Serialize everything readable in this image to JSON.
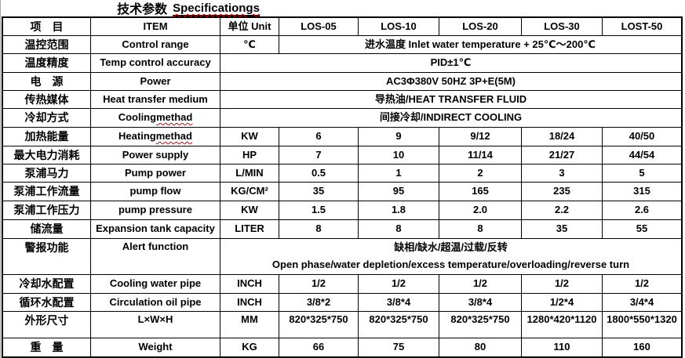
{
  "title": {
    "zh": "技术参数",
    "en": "Specificationgs"
  },
  "table": {
    "header": [
      "项目",
      "ITEM",
      "单位 Unit",
      "LOS-05",
      "LOS-10",
      "LOS-20",
      "LOS-30",
      "LOST-50"
    ],
    "rows": [
      {
        "id": "control-range",
        "zh": "温控范围",
        "en": "Control range",
        "unit": "℃",
        "merged": "进水温度 Inlet water temperature + 25℃～200℃",
        "merged_span": "models"
      },
      {
        "id": "temp-accuracy",
        "zh": "温度精度",
        "en": "Temp control accuracy",
        "merged": "PID±1℃",
        "merged_span": "full"
      },
      {
        "id": "power",
        "zh": "电源",
        "en": "Power",
        "merged": "AC3Φ380V 50HZ 3P+E(5M)",
        "merged_span": "full"
      },
      {
        "id": "heat-medium",
        "zh": "传热媒体",
        "en": "Heat transfer medium",
        "merged": "导热油/HEAT TRANSFER FLUID",
        "merged_span": "full"
      },
      {
        "id": "cooling-method",
        "zh": "冷却方式",
        "en": "Cooling methad",
        "misspell": "methad",
        "merged": "间接冷却/INDIRECT COOLING",
        "merged_span": "full"
      },
      {
        "id": "heating-capacity",
        "zh": "加热能量",
        "en": "Heating methad",
        "misspell": "methad",
        "unit": "KW",
        "values": [
          "6",
          "9",
          "9/12",
          "18/24",
          "40/50"
        ]
      },
      {
        "id": "power-supply",
        "zh": "最大电力消耗",
        "en": "Power supply",
        "unit": "HP",
        "values": [
          "7",
          "10",
          "11/14",
          "21/27",
          "44/54"
        ]
      },
      {
        "id": "pump-power",
        "zh": "泵浦马力",
        "en": "Pump power",
        "unit": "L/MIN",
        "values": [
          "0.5",
          "1",
          "2",
          "3",
          "5"
        ]
      },
      {
        "id": "pump-flow",
        "zh": "泵浦工作流量",
        "en": "pump flow",
        "unit": "KG/CM²",
        "values": [
          "35",
          "95",
          "165",
          "235",
          "315"
        ]
      },
      {
        "id": "pump-pressure",
        "zh": "泵浦工作压力",
        "en": "pump pressure",
        "unit": "KW",
        "values": [
          "1.5",
          "1.8",
          "2.0",
          "2.2",
          "2.6"
        ]
      },
      {
        "id": "tank-capacity",
        "zh": "储流量",
        "en": "Expansion tank capacity",
        "unit": "LITER",
        "values": [
          "8",
          "8",
          "8",
          "35",
          "55"
        ]
      },
      {
        "id": "alert-function",
        "zh": "警报功能",
        "en": "Alert function",
        "merged_span": "full",
        "lines": [
          "缺相/缺水/超温/过载/反转",
          "Open phase/water depletion/excess temperature/overloading/reverse turn"
        ]
      },
      {
        "id": "cooling-water-pipe",
        "zh": "冷却水配置",
        "en": "Cooling water pipe",
        "unit": "INCH",
        "values": [
          "1/2",
          "1/2",
          "1/2",
          "1/2",
          "1/2"
        ]
      },
      {
        "id": "circulation-oil-pipe",
        "zh": "循环水配置",
        "en": "Circulation oil pipe",
        "unit": "INCH",
        "values": [
          "3/8*2",
          "3/8*4",
          "3/8*4",
          "1/2*4",
          "3/4*4"
        ]
      },
      {
        "id": "dimensions",
        "zh": "外形尺寸",
        "en": "L×W×H",
        "unit": "MM",
        "values": [
          "820*325*750",
          "820*325*750",
          "820*325*750",
          "1280*420*1120",
          "1800*550*1320"
        ]
      },
      {
        "id": "weight",
        "zh": "重量",
        "en": "Weight",
        "unit": "KG",
        "values": [
          "66",
          "75",
          "80",
          "110",
          "160"
        ]
      }
    ]
  },
  "colors": {
    "grid": "#000000",
    "text": "#000000",
    "misspell_underline": "#e00000"
  }
}
